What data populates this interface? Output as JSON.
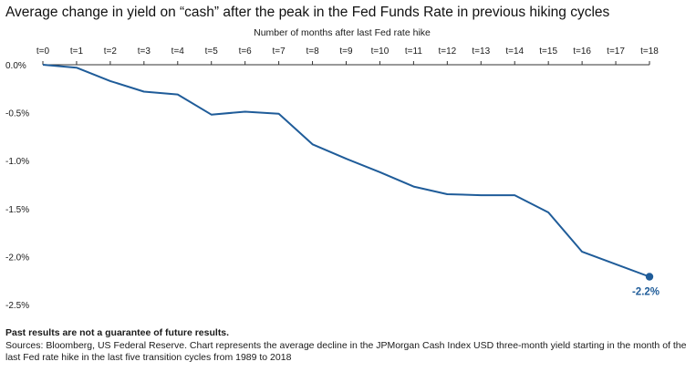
{
  "title": "Average change in yield on “cash” after the peak in the Fed Funds Rate in previous hiking cycles",
  "disclaimer": "Past results are not a guarantee of future results.",
  "sources": "Sources: Bloomberg, US Federal Reserve. Chart represents the average decline in the JPMorgan Cash Index USD three-month yield starting in the month of the last Fed rate hike in the last five transition cycles from 1989 to 2018",
  "chart_data": {
    "type": "line",
    "title": "Average change in yield on “cash” after the peak in the Fed Funds Rate in previous hiking cycles",
    "xlabel": "Number of months after last Fed rate hike",
    "ylabel": "",
    "x_axis_position": "top",
    "categories": [
      "t=0",
      "t=1",
      "t=2",
      "t=3",
      "t=4",
      "t=5",
      "t=6",
      "t=7",
      "t=8",
      "t=9",
      "t=10",
      "t=11",
      "t=12",
      "t=13",
      "t=14",
      "t=15",
      "t=16",
      "t=17",
      "t=18"
    ],
    "y_ticks": [
      0.0,
      -0.5,
      -1.0,
      -1.5,
      -2.0,
      -2.5
    ],
    "y_tick_labels": [
      "0.0%",
      "-0.5%",
      "-1.0%",
      "-1.5%",
      "-2.0%",
      "-2.5%"
    ],
    "ylim": [
      -2.5,
      0.0
    ],
    "grid": false,
    "series": [
      {
        "color": "#1f5c99",
        "values": [
          0.0,
          -0.03,
          -0.17,
          -0.28,
          -0.31,
          -0.52,
          -0.49,
          -0.51,
          -0.83,
          -0.98,
          -1.12,
          -1.27,
          -1.35,
          -1.36,
          -1.36,
          -1.54,
          -1.95,
          -2.08,
          -2.21
        ]
      }
    ],
    "end_label": "-2.2%"
  }
}
